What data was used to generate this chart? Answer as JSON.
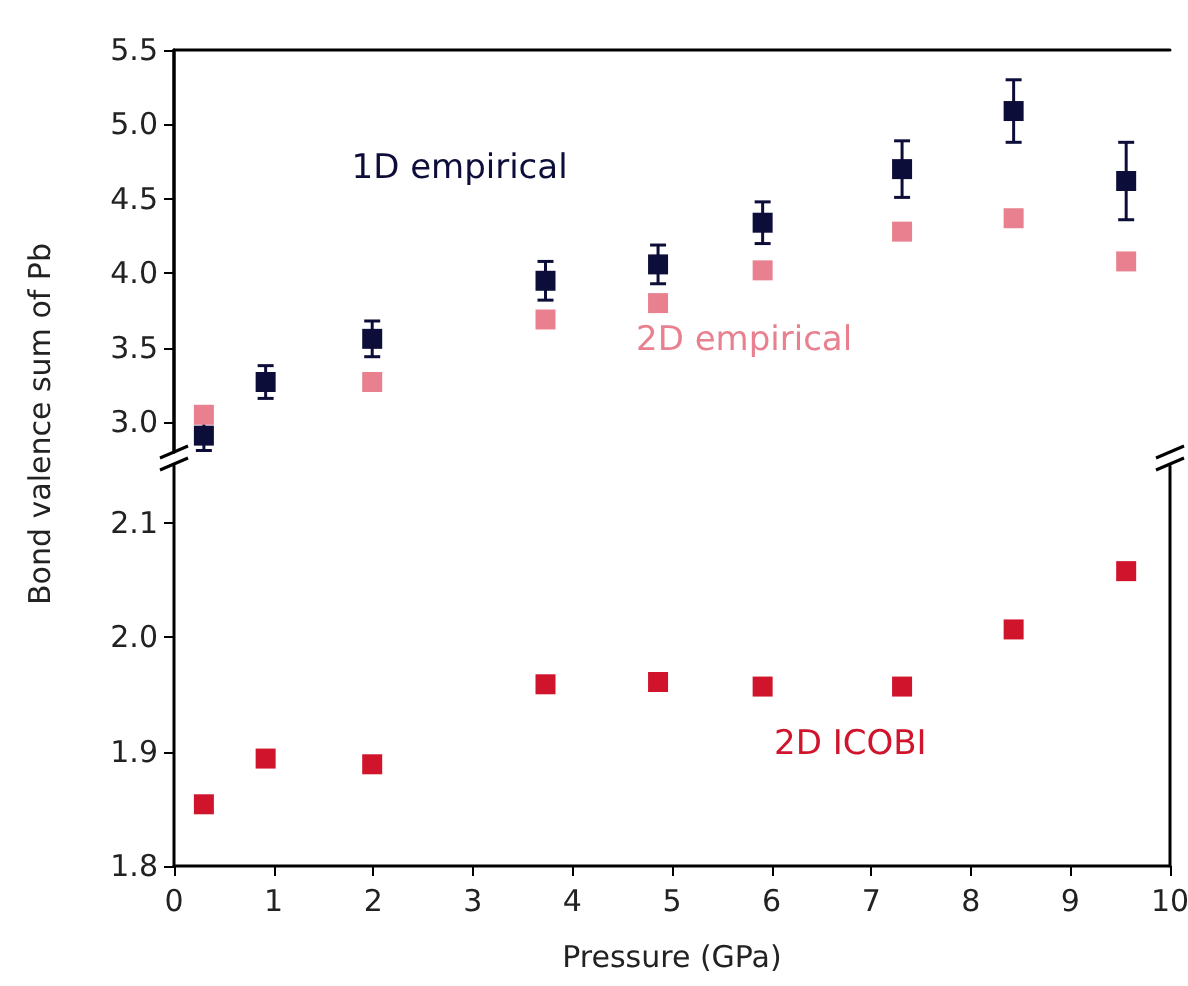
{
  "chart_data": [
    {
      "type": "scatter",
      "x": [
        0.3,
        0.92,
        1.99,
        3.73,
        4.86,
        5.91,
        7.31,
        8.43,
        9.56
      ],
      "marker": "square",
      "legend": false,
      "grid": false,
      "tick_labels": "y",
      "xlim": [
        0,
        10
      ],
      "ylim": [
        2.8,
        5.5
      ],
      "yticks": [
        {
          "value": 3,
          "label": "3.0"
        },
        3.5,
        {
          "value": 4,
          "label": "4.0"
        },
        4.5,
        {
          "value": 5,
          "label": "5.0"
        },
        5.5
      ],
      "series": [
        {
          "name": "2D empirical",
          "color": "#e8808f",
          "values": [
            3.05,
            null,
            3.27,
            3.69,
            3.8,
            4.02,
            4.28,
            4.37,
            4.08
          ]
        },
        {
          "name": "1D empirical",
          "color": "#0d0d3a",
          "values": [
            2.91,
            3.27,
            3.56,
            3.95,
            4.06,
            4.34,
            4.7,
            5.09,
            4.62
          ],
          "errors": [
            0.1,
            0.11,
            0.12,
            0.13,
            0.13,
            0.14,
            0.19,
            0.21,
            0.26
          ]
        }
      ]
    },
    {
      "type": "scatter",
      "x": [
        0.3,
        0.92,
        1.99,
        3.73,
        4.86,
        5.91,
        7.31,
        8.43,
        9.56
      ],
      "marker": "square",
      "legend": false,
      "grid": false,
      "xlabel": "Pressure (GPa)",
      "ylabel": "Bond valence sum of Pb",
      "xlim": [
        0,
        10
      ],
      "xticks": [
        0,
        1,
        2,
        3,
        4,
        5,
        6,
        7,
        8,
        9,
        10
      ],
      "ylim": [
        1.8,
        2.15
      ],
      "yticks": [
        1.8,
        1.9,
        {
          "value": 2,
          "label": "2.0"
        },
        2.1
      ],
      "series": [
        {
          "name": "2D ICOBI",
          "color": "#d0142c",
          "values": [
            1.854,
            1.894,
            1.889,
            1.959,
            1.961,
            1.957,
            1.957,
            2.007,
            2.058
          ]
        }
      ]
    }
  ]
}
